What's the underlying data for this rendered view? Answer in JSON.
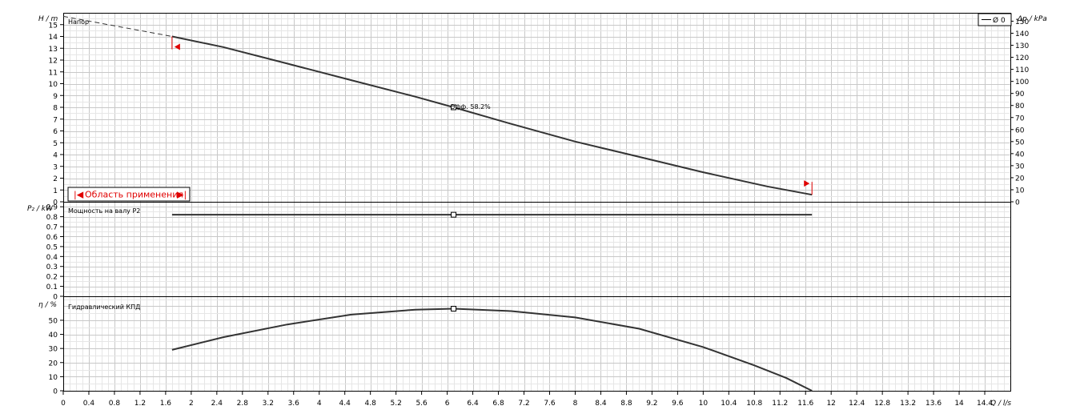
{
  "chart_data": {
    "type": "line",
    "xlabel": "Q / l/s",
    "xlim": [
      0,
      14.8
    ],
    "x_ticks": [
      "0",
      "0.4",
      "0.8",
      "1.2",
      "1.6",
      "2",
      "2.4",
      "2.8",
      "3.2",
      "3.6",
      "4",
      "4.4",
      "4.8",
      "5.2",
      "5.6",
      "6",
      "6.4",
      "6.8",
      "7.2",
      "7.6",
      "8",
      "8.4",
      "8.8",
      "9.2",
      "9.6",
      "10",
      "10.4",
      "10.8",
      "11.2",
      "11.6",
      "12",
      "12.4",
      "12.8",
      "13.2",
      "13.6",
      "14",
      "14.4"
    ],
    "legend": "Ø 0",
    "legend_placement": "top-right",
    "application_range_label": "Область применения",
    "duty_point": {
      "q": 6.1,
      "label": "Эфф. 58.2%"
    },
    "range_limits": {
      "min_q": 1.7,
      "max_q": 11.7
    },
    "panels": [
      {
        "id": "head",
        "title": "Напор",
        "ylabel": "H / m",
        "ylim": [
          0,
          16
        ],
        "y_ticks": [
          "0",
          "1",
          "2",
          "3",
          "4",
          "5",
          "6",
          "7",
          "8",
          "9",
          "10",
          "11",
          "12",
          "13",
          "14",
          "15"
        ],
        "ylabel_right": "Δp / kPa",
        "y_ticks_right": [
          "0",
          "10",
          "20",
          "30",
          "40",
          "50",
          "60",
          "70",
          "80",
          "90",
          "100",
          "110",
          "120",
          "130",
          "140",
          "150"
        ],
        "extrapolated": {
          "x": [
            0,
            1.7
          ],
          "y": [
            15.7,
            14.0
          ]
        },
        "series": [
          {
            "x": [
              1.7,
              2.5,
              3.5,
              4.5,
              5.5,
              6.1,
              7.0,
              8.0,
              9.0,
              10.0,
              11.0,
              11.7
            ],
            "y": [
              14.0,
              13.1,
              11.7,
              10.3,
              8.9,
              8.0,
              6.6,
              5.1,
              3.8,
              2.5,
              1.3,
              0.6
            ]
          }
        ],
        "marker_y": 8.0
      },
      {
        "id": "power",
        "title": "Мощность на валу  P2",
        "ylabel": "P₂ / kW",
        "ylim": [
          0,
          0.95
        ],
        "y_ticks": [
          "0",
          "0.1",
          "0.2",
          "0.3",
          "0.4",
          "0.5",
          "0.6",
          "0.7",
          "0.8",
          "0.9"
        ],
        "series": [
          {
            "x": [
              1.7,
              11.7
            ],
            "y": [
              0.82,
              0.82
            ]
          }
        ],
        "marker_y": 0.82
      },
      {
        "id": "efficiency",
        "title": "Гидравлический КПД",
        "ylabel": "η / %",
        "ylim": [
          0,
          67
        ],
        "y_ticks": [
          "0",
          "10",
          "20",
          "30",
          "40",
          "50"
        ],
        "series": [
          {
            "x": [
              1.7,
              2.5,
              3.5,
              4.5,
              5.5,
              6.1,
              7.0,
              8.0,
              9.0,
              10.0,
              10.8,
              11.3,
              11.7
            ],
            "y": [
              29,
              38,
              47,
              54,
              57.5,
              58.2,
              56.5,
              52,
              44,
              31,
              18,
              9,
              0
            ]
          }
        ],
        "marker_y": 58.2
      }
    ]
  }
}
